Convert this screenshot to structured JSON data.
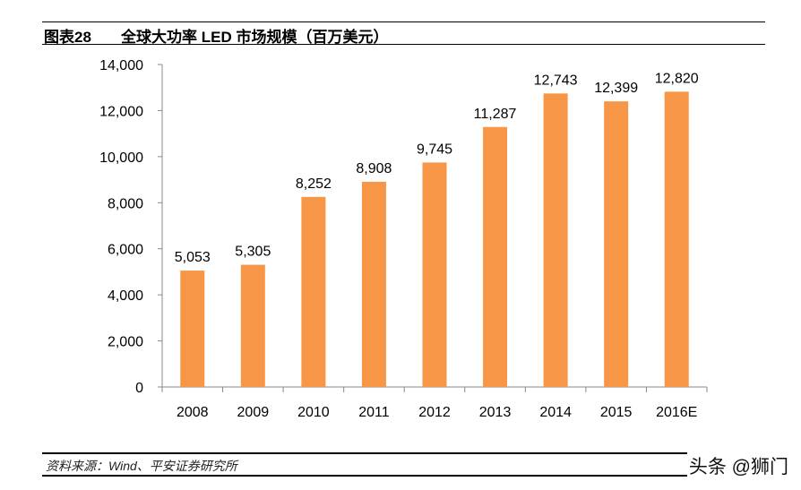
{
  "header": {
    "figure_no": "图表28",
    "title": "全球大功率 LED 市场规模（百万美元）"
  },
  "chart_data": {
    "type": "bar",
    "title": "全球大功率 LED 市场规模（百万美元）",
    "categories": [
      "2008",
      "2009",
      "2010",
      "2011",
      "2012",
      "2013",
      "2014",
      "2015",
      "2016E"
    ],
    "values": [
      5053,
      5305,
      8252,
      8908,
      9745,
      11287,
      12743,
      12399,
      12820
    ],
    "data_labels": [
      "5,053",
      "5,305",
      "8,252",
      "8,908",
      "9,745",
      "11,287",
      "12,743",
      "12,399",
      "12,820"
    ],
    "ylim": [
      0,
      14000
    ],
    "yticks": [
      "0",
      "2,000",
      "4,000",
      "6,000",
      "8,000",
      "10,000",
      "12,000",
      "14,000"
    ],
    "grid": false,
    "bar_color": "#F79646"
  },
  "footer": {
    "source": "资料来源：Wind、平安证券研究所",
    "watermark": "头条 @狮门"
  }
}
